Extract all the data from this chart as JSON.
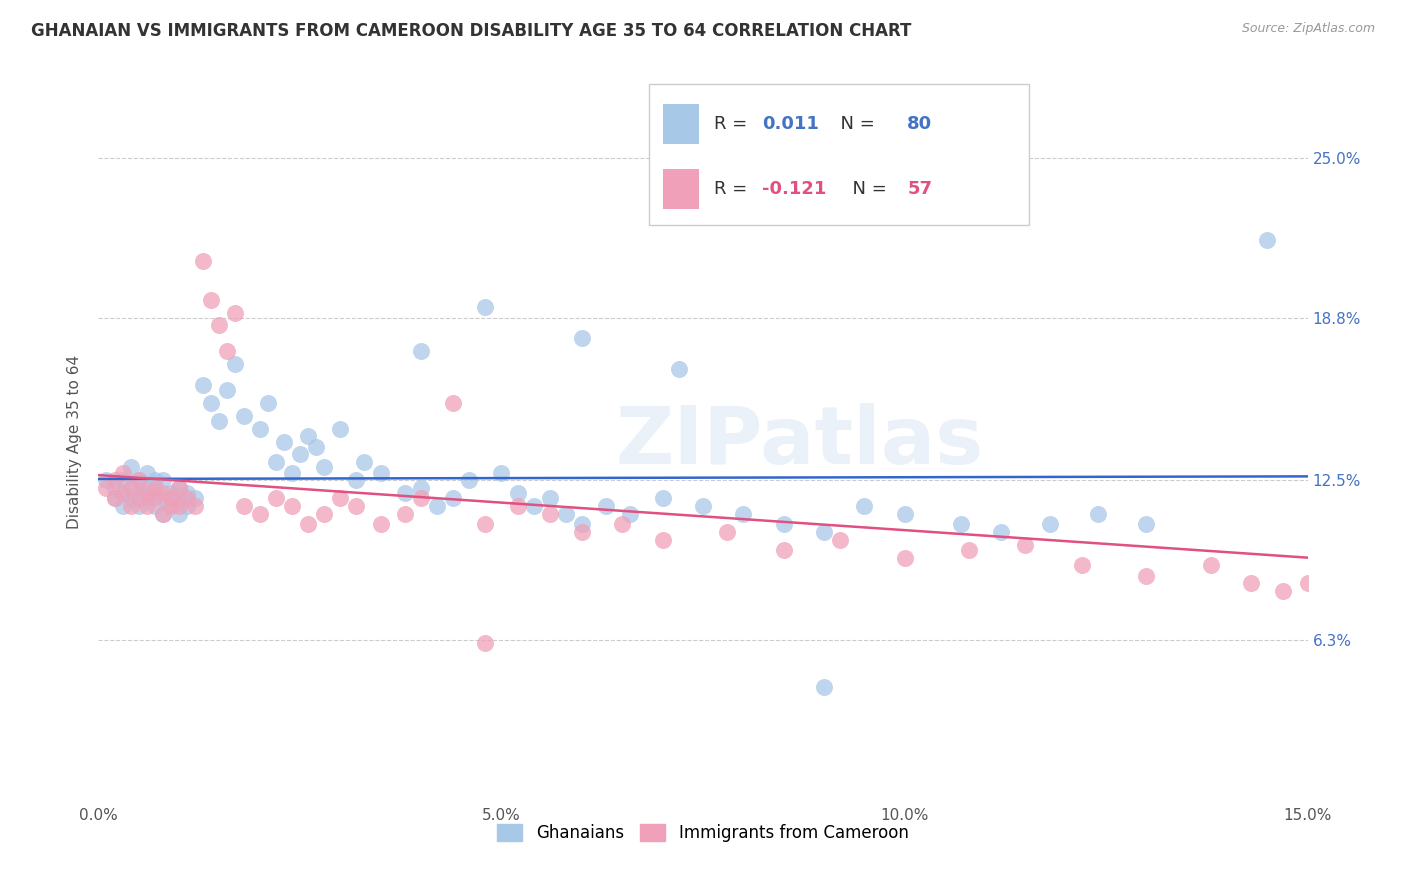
{
  "title": "GHANAIAN VS IMMIGRANTS FROM CAMEROON DISABILITY AGE 35 TO 64 CORRELATION CHART",
  "source": "Source: ZipAtlas.com",
  "ylabel": "Disability Age 35 to 64",
  "ytick_labels": [
    "6.3%",
    "12.5%",
    "18.8%",
    "25.0%"
  ],
  "ytick_values": [
    0.063,
    0.125,
    0.188,
    0.25
  ],
  "xlim": [
    0.0,
    0.15
  ],
  "ylim": [
    0.0,
    0.28
  ],
  "legend_label1": "Ghanaians",
  "legend_label2": "Immigrants from Cameroon",
  "R1": "0.011",
  "N1": "80",
  "R2": "-0.121",
  "N2": "57",
  "color_blue": "#a8c8e8",
  "color_pink": "#f0a0b8",
  "line_color_blue": "#3366cc",
  "line_color_pink": "#e05080",
  "background_color": "#ffffff",
  "watermark": "ZIPatlas",
  "ghanaians_x": [
    0.001,
    0.002,
    0.002,
    0.003,
    0.003,
    0.003,
    0.004,
    0.004,
    0.004,
    0.005,
    0.005,
    0.005,
    0.006,
    0.006,
    0.006,
    0.007,
    0.007,
    0.007,
    0.008,
    0.008,
    0.008,
    0.009,
    0.009,
    0.009,
    0.01,
    0.01,
    0.01,
    0.011,
    0.011,
    0.012,
    0.013,
    0.014,
    0.015,
    0.016,
    0.017,
    0.018,
    0.02,
    0.021,
    0.022,
    0.023,
    0.024,
    0.025,
    0.026,
    0.027,
    0.028,
    0.03,
    0.032,
    0.033,
    0.035,
    0.038,
    0.04,
    0.042,
    0.044,
    0.046,
    0.05,
    0.052,
    0.054,
    0.056,
    0.058,
    0.06,
    0.063,
    0.066,
    0.07,
    0.075,
    0.08,
    0.085,
    0.09,
    0.095,
    0.1,
    0.107,
    0.112,
    0.118,
    0.124,
    0.13,
    0.04,
    0.048,
    0.06,
    0.072,
    0.09,
    0.145
  ],
  "ghanaians_y": [
    0.125,
    0.122,
    0.118,
    0.125,
    0.12,
    0.115,
    0.122,
    0.118,
    0.13,
    0.12,
    0.115,
    0.125,
    0.118,
    0.122,
    0.128,
    0.115,
    0.12,
    0.125,
    0.112,
    0.118,
    0.125,
    0.115,
    0.12,
    0.118,
    0.112,
    0.118,
    0.122,
    0.115,
    0.12,
    0.118,
    0.162,
    0.155,
    0.148,
    0.16,
    0.17,
    0.15,
    0.145,
    0.155,
    0.132,
    0.14,
    0.128,
    0.135,
    0.142,
    0.138,
    0.13,
    0.145,
    0.125,
    0.132,
    0.128,
    0.12,
    0.122,
    0.115,
    0.118,
    0.125,
    0.128,
    0.12,
    0.115,
    0.118,
    0.112,
    0.108,
    0.115,
    0.112,
    0.118,
    0.115,
    0.112,
    0.108,
    0.105,
    0.115,
    0.112,
    0.108,
    0.105,
    0.108,
    0.112,
    0.108,
    0.175,
    0.192,
    0.18,
    0.168,
    0.045,
    0.218
  ],
  "cameroon_x": [
    0.001,
    0.002,
    0.002,
    0.003,
    0.003,
    0.004,
    0.004,
    0.005,
    0.005,
    0.006,
    0.006,
    0.007,
    0.007,
    0.008,
    0.008,
    0.009,
    0.009,
    0.01,
    0.01,
    0.011,
    0.012,
    0.013,
    0.014,
    0.015,
    0.016,
    0.017,
    0.018,
    0.02,
    0.022,
    0.024,
    0.026,
    0.028,
    0.03,
    0.032,
    0.035,
    0.038,
    0.04,
    0.044,
    0.048,
    0.052,
    0.056,
    0.06,
    0.065,
    0.07,
    0.078,
    0.085,
    0.092,
    0.1,
    0.108,
    0.115,
    0.122,
    0.13,
    0.138,
    0.143,
    0.147,
    0.15,
    0.048
  ],
  "cameroon_y": [
    0.122,
    0.118,
    0.125,
    0.12,
    0.128,
    0.115,
    0.122,
    0.118,
    0.125,
    0.12,
    0.115,
    0.122,
    0.118,
    0.112,
    0.12,
    0.115,
    0.118,
    0.122,
    0.115,
    0.118,
    0.115,
    0.21,
    0.195,
    0.185,
    0.175,
    0.19,
    0.115,
    0.112,
    0.118,
    0.115,
    0.108,
    0.112,
    0.118,
    0.115,
    0.108,
    0.112,
    0.118,
    0.155,
    0.108,
    0.115,
    0.112,
    0.105,
    0.108,
    0.102,
    0.105,
    0.098,
    0.102,
    0.095,
    0.098,
    0.1,
    0.092,
    0.088,
    0.092,
    0.085,
    0.082,
    0.085,
    0.062
  ]
}
